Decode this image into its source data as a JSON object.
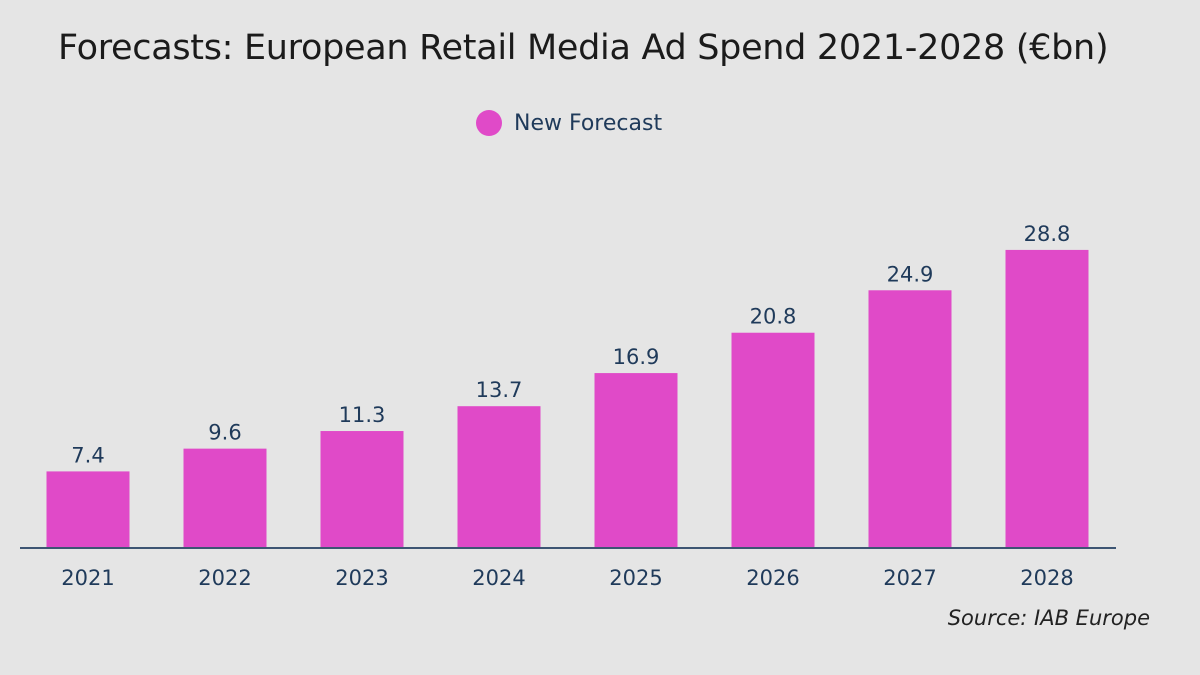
{
  "chart_data": {
    "type": "bar",
    "title": "Forecasts: European Retail Media Ad Spend 2021-2028 (€bn)",
    "categories": [
      "2021",
      "2022",
      "2023",
      "2024",
      "2025",
      "2026",
      "2027",
      "2028"
    ],
    "series": [
      {
        "name": "New Forecast",
        "values": [
          7.4,
          9.6,
          11.3,
          13.7,
          16.9,
          20.8,
          24.9,
          28.8
        ]
      }
    ],
    "data_labels": [
      "7.4",
      "9.6",
      "11.3",
      "13.7",
      "16.9",
      "20.8",
      "24.9",
      "28.8"
    ],
    "xlabel": "",
    "ylabel": "",
    "ylim": [
      0,
      30
    ],
    "grid": false,
    "legend": "top-center",
    "colors": {
      "bar": "#e04ac8",
      "text": "#1f3a5a",
      "axis": "#3d5573",
      "background": "#e5e5e5"
    },
    "source": "Source: IAB Europe"
  }
}
